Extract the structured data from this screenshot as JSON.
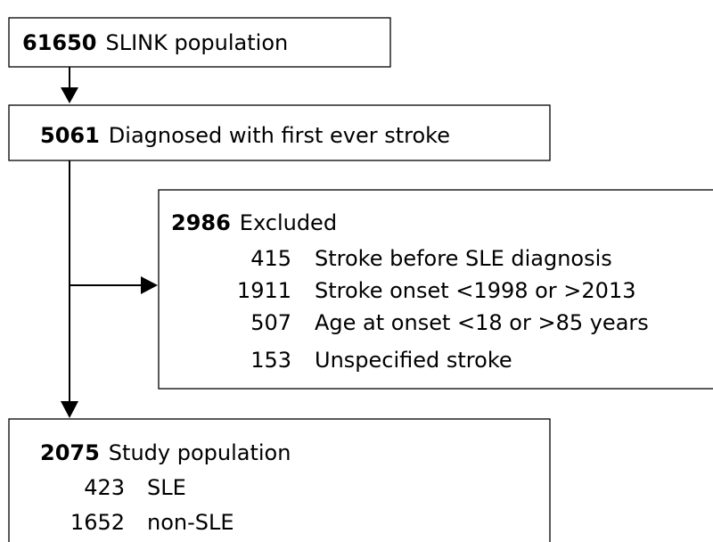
{
  "nodes": [
    {
      "count": 61650,
      "label": "SLINK population"
    },
    {
      "count": 5061,
      "label": "Diagnosed with first ever stroke"
    },
    {
      "count": 2986,
      "label": "Excluded",
      "items": [
        {
          "count": 415,
          "label": "Stroke before SLE diagnosis"
        },
        {
          "count": 1911,
          "label": "Stroke onset <1998 or >2013"
        },
        {
          "count": 507,
          "label": "Age at onset <18 or >85 years"
        },
        {
          "count": 153,
          "label": "Unspecified stroke"
        }
      ]
    },
    {
      "count": 2075,
      "label": "Study population",
      "items": [
        {
          "count": 423,
          "label": "SLE"
        },
        {
          "count": 1652,
          "label": "non-SLE"
        }
      ]
    }
  ]
}
